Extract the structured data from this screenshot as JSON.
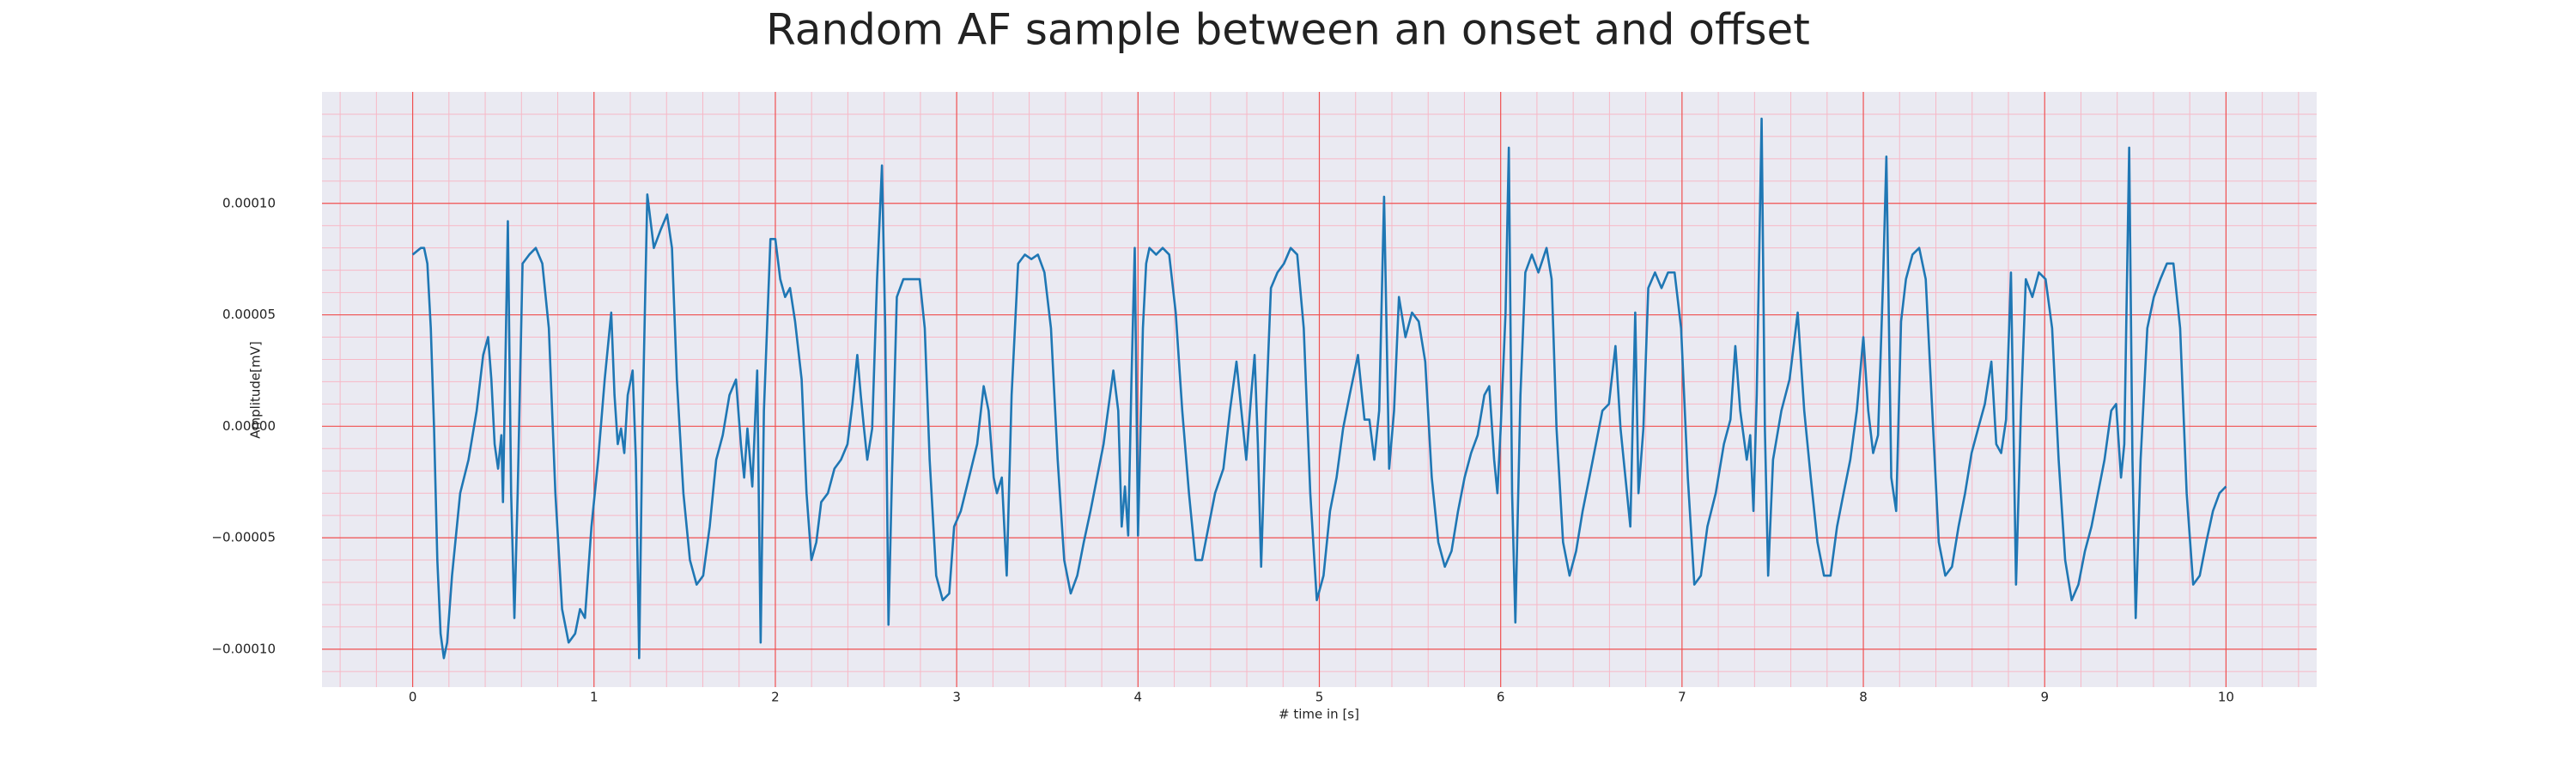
{
  "chart_data": {
    "type": "line",
    "title": "Random AF sample between an onset and offset",
    "xlabel": "# time in [s]",
    "ylabel": "Amplitude[mV]",
    "xlim": [
      -0.5,
      10.5
    ],
    "ylim": [
      -0.000117,
      0.00015
    ],
    "xticks": [
      0,
      1,
      2,
      3,
      4,
      5,
      6,
      7,
      8,
      9,
      10
    ],
    "yticks": [
      {
        "value": -0.0001,
        "label": "−0.00010"
      },
      {
        "value": -5e-05,
        "label": "−0.00005"
      },
      {
        "value": 0,
        "label": "0.00000"
      },
      {
        "value": 5e-05,
        "label": "0.00005"
      },
      {
        "value": 0.0001,
        "label": "0.00010"
      }
    ],
    "grid": true,
    "color": "#1f77b4",
    "x": [
      0,
      0.045,
      0.063,
      0.081,
      0.1,
      0.118,
      0.136,
      0.154,
      0.172,
      0.19,
      0.217,
      0.262,
      0.308,
      0.353,
      0.389,
      0.416,
      0.434,
      0.452,
      0.471,
      0.489,
      0.498,
      0.525,
      0.543,
      0.561,
      0.579,
      0.606,
      0.643,
      0.679,
      0.715,
      0.751,
      0.787,
      0.824,
      0.86,
      0.896,
      0.923,
      0.95,
      0.986,
      1.023,
      1.059,
      1.095,
      1.113,
      1.131,
      1.149,
      1.167,
      1.186,
      1.213,
      1.231,
      1.249,
      1.267,
      1.294,
      1.33,
      1.367,
      1.403,
      1.43,
      1.457,
      1.493,
      1.529,
      1.566,
      1.602,
      1.638,
      1.674,
      1.71,
      1.747,
      1.783,
      1.81,
      1.828,
      1.846,
      1.873,
      1.9,
      1.919,
      1.937,
      1.973,
      2.0,
      2.027,
      2.054,
      2.081,
      2.109,
      2.145,
      2.172,
      2.199,
      2.226,
      2.253,
      2.29,
      2.326,
      2.362,
      2.398,
      2.425,
      2.452,
      2.471,
      2.489,
      2.507,
      2.534,
      2.561,
      2.588,
      2.606,
      2.624,
      2.643,
      2.67,
      2.706,
      2.751,
      2.796,
      2.824,
      2.851,
      2.887,
      2.923,
      2.959,
      2.986,
      3.023,
      3.068,
      3.113,
      3.149,
      3.176,
      3.204,
      3.222,
      3.249,
      3.276,
      3.303,
      3.339,
      3.376,
      3.412,
      3.448,
      3.484,
      3.52,
      3.557,
      3.593,
      3.629,
      3.665,
      3.701,
      3.738,
      3.774,
      3.81,
      3.846,
      3.864,
      3.891,
      3.91,
      3.928,
      3.946,
      3.964,
      3.982,
      4.0,
      4.027,
      4.045,
      4.063,
      4.1,
      4.136,
      4.172,
      4.208,
      4.244,
      4.281,
      4.317,
      4.353,
      4.389,
      4.425,
      4.471,
      4.507,
      4.543,
      4.57,
      4.597,
      4.624,
      4.643,
      4.661,
      4.679,
      4.706,
      4.733,
      4.769,
      4.805,
      4.842,
      4.878,
      4.914,
      4.95,
      4.986,
      5.023,
      5.059,
      5.095,
      5.131,
      5.167,
      5.213,
      5.249,
      5.276,
      5.303,
      5.33,
      5.357,
      5.385,
      5.412,
      5.439,
      5.475,
      5.511,
      5.548,
      5.584,
      5.62,
      5.656,
      5.692,
      5.729,
      5.765,
      5.801,
      5.837,
      5.873,
      5.91,
      5.937,
      5.964,
      5.982,
      6.0,
      6.027,
      6.045,
      6.063,
      6.081,
      6.109,
      6.136,
      6.172,
      6.208,
      6.253,
      6.281,
      6.308,
      6.344,
      6.38,
      6.416,
      6.452,
      6.489,
      6.525,
      6.561,
      6.597,
      6.633,
      6.661,
      6.688,
      6.715,
      6.742,
      6.76,
      6.787,
      6.814,
      6.851,
      6.887,
      6.923,
      6.959,
      6.995,
      7.032,
      7.068,
      7.104,
      7.14,
      7.186,
      7.231,
      7.267,
      7.294,
      7.321,
      7.357,
      7.376,
      7.394,
      7.412,
      7.439,
      7.457,
      7.475,
      7.502,
      7.548,
      7.593,
      7.638,
      7.674,
      7.71,
      7.747,
      7.783,
      7.819,
      7.855,
      7.891,
      7.928,
      7.964,
      8.0,
      8.027,
      8.054,
      8.081,
      8.109,
      8.127,
      8.154,
      8.181,
      8.208,
      8.235,
      8.271,
      8.308,
      8.344,
      8.38,
      8.416,
      8.452,
      8.489,
      8.525,
      8.561,
      8.597,
      8.633,
      8.67,
      8.706,
      8.733,
      8.76,
      8.787,
      8.814,
      8.842,
      8.869,
      8.896,
      8.932,
      8.968,
      9.005,
      9.041,
      9.077,
      9.113,
      9.149,
      9.186,
      9.222,
      9.258,
      9.294,
      9.33,
      9.367,
      9.394,
      9.421,
      9.439,
      9.466,
      9.484,
      9.502,
      9.529,
      9.566,
      9.602,
      9.638,
      9.674,
      9.71,
      9.747,
      9.783,
      9.819,
      9.855,
      9.891,
      9.928,
      9.964,
      10.0
    ],
    "values": [
      7.7e-05,
      8e-05,
      8e-05,
      7.3e-05,
      4.4e-05,
      -1e-06,
      -6e-05,
      -9.3e-05,
      -0.000104,
      -9.7e-05,
      -6.7e-05,
      -3e-05,
      -1.5e-05,
      7e-06,
      3.2e-05,
      4e-05,
      2.1e-05,
      -8e-06,
      -1.9e-05,
      -4e-06,
      -3.4e-05,
      9.2e-05,
      -3e-05,
      -8.6e-05,
      -3e-05,
      7.3e-05,
      7.7e-05,
      8e-05,
      7.3e-05,
      4.4e-05,
      -3e-05,
      -8.2e-05,
      -9.7e-05,
      -9.3e-05,
      -8.2e-05,
      -8.6e-05,
      -4.5e-05,
      -1.5e-05,
      2.1e-05,
      5.1e-05,
      1.4e-05,
      -8e-06,
      -1e-06,
      -1.2e-05,
      1.4e-05,
      2.5e-05,
      -1.5e-05,
      -0.000104,
      -1e-06,
      0.000104,
      8e-05,
      8.8e-05,
      9.5e-05,
      8e-05,
      2.1e-05,
      -3e-05,
      -6e-05,
      -7.1e-05,
      -6.7e-05,
      -4.5e-05,
      -1.5e-05,
      -4e-06,
      1.4e-05,
      2.1e-05,
      -8e-06,
      -2.3e-05,
      -1e-06,
      -2.7e-05,
      2.5e-05,
      -9.7e-05,
      7e-06,
      8.4e-05,
      8.4e-05,
      6.6e-05,
      5.8e-05,
      6.2e-05,
      4.7e-05,
      2.1e-05,
      -3e-05,
      -6e-05,
      -5.2e-05,
      -3.4e-05,
      -3e-05,
      -1.9e-05,
      -1.5e-05,
      -8e-06,
      1e-05,
      3.2e-05,
      1.4e-05,
      -1e-06,
      -1.5e-05,
      -1e-06,
      6.6e-05,
      0.000117,
      4.4e-05,
      -8.9e-05,
      -2.3e-05,
      5.8e-05,
      6.6e-05,
      6.6e-05,
      6.6e-05,
      4.4e-05,
      -1.5e-05,
      -6.7e-05,
      -7.8e-05,
      -7.5e-05,
      -4.5e-05,
      -3.8e-05,
      -2.3e-05,
      -8e-06,
      1.8e-05,
      7e-06,
      -2.3e-05,
      -3e-05,
      -2.3e-05,
      -6.7e-05,
      1.4e-05,
      7.3e-05,
      7.7e-05,
      7.5e-05,
      7.7e-05,
      6.9e-05,
      4.4e-05,
      -1.5e-05,
      -6e-05,
      -7.5e-05,
      -6.7e-05,
      -5.2e-05,
      -3.8e-05,
      -2.3e-05,
      -8e-06,
      1.4e-05,
      2.5e-05,
      7e-06,
      -4.5e-05,
      -2.7e-05,
      -4.9e-05,
      2.1e-05,
      8e-05,
      -4.9e-05,
      4.4e-05,
      7.3e-05,
      8e-05,
      7.7e-05,
      8e-05,
      7.7e-05,
      5.1e-05,
      7e-06,
      -3e-05,
      -6e-05,
      -6e-05,
      -4.5e-05,
      -3e-05,
      -1.9e-05,
      7e-06,
      2.9e-05,
      7e-06,
      -1.5e-05,
      1.4e-05,
      3.2e-05,
      -8e-06,
      -6.3e-05,
      7e-06,
      6.2e-05,
      6.9e-05,
      7.3e-05,
      8e-05,
      7.7e-05,
      4.4e-05,
      -3e-05,
      -7.8e-05,
      -6.7e-05,
      -3.8e-05,
      -2.3e-05,
      -1e-06,
      1.4e-05,
      3.2e-05,
      3e-06,
      3e-06,
      -1.5e-05,
      7e-06,
      0.000103,
      -1.9e-05,
      7e-06,
      5.8e-05,
      4e-05,
      5.1e-05,
      4.7e-05,
      2.9e-05,
      -2.3e-05,
      -5.2e-05,
      -6.3e-05,
      -5.6e-05,
      -3.8e-05,
      -2.3e-05,
      -1.2e-05,
      -4e-06,
      1.4e-05,
      1.8e-05,
      -1.5e-05,
      -3e-05,
      -1e-06,
      5.1e-05,
      0.000125,
      -3e-05,
      -8.8e-05,
      1.4e-05,
      6.9e-05,
      7.7e-05,
      6.9e-05,
      8e-05,
      6.6e-05,
      -1e-06,
      -5.2e-05,
      -6.7e-05,
      -5.6e-05,
      -3.8e-05,
      -2.3e-05,
      -8e-06,
      7e-06,
      1e-05,
      3.6e-05,
      -1e-06,
      -2.3e-05,
      -4.5e-05,
      5.1e-05,
      -3e-05,
      -1e-06,
      6.2e-05,
      6.9e-05,
      6.2e-05,
      6.9e-05,
      6.9e-05,
      4.4e-05,
      -2.3e-05,
      -7.1e-05,
      -6.7e-05,
      -4.5e-05,
      -3e-05,
      -8e-06,
      3e-06,
      3.6e-05,
      7e-06,
      -1.5e-05,
      -4e-06,
      -3.8e-05,
      1.4e-05,
      0.000138,
      -1e-06,
      -6.7e-05,
      -1.5e-05,
      7e-06,
      2.1e-05,
      5.1e-05,
      7e-06,
      -2.3e-05,
      -5.2e-05,
      -6.7e-05,
      -6.7e-05,
      -4.5e-05,
      -3e-05,
      -1.5e-05,
      7e-06,
      4e-05,
      7e-06,
      -1.2e-05,
      -4e-06,
      6.6e-05,
      0.000121,
      -2.3e-05,
      -3.8e-05,
      4.7e-05,
      6.6e-05,
      7.7e-05,
      8e-05,
      6.6e-05,
      7e-06,
      -5.2e-05,
      -6.7e-05,
      -6.3e-05,
      -4.5e-05,
      -3e-05,
      -1.2e-05,
      -1e-06,
      1e-05,
      2.9e-05,
      -8e-06,
      -1.2e-05,
      3e-06,
      6.9e-05,
      -7.1e-05,
      7e-06,
      6.6e-05,
      5.8e-05,
      6.9e-05,
      6.6e-05,
      4.4e-05,
      -1.5e-05,
      -6e-05,
      -7.8e-05,
      -7.1e-05,
      -5.6e-05,
      -4.5e-05,
      -3e-05,
      -1.5e-05,
      7e-06,
      1e-05,
      -2.3e-05,
      -8e-06,
      0.000125,
      -1.5e-05,
      -8.6e-05,
      -1.5e-05,
      4.4e-05,
      5.8e-05,
      6.6e-05,
      7.3e-05,
      7.3e-05,
      4.4e-05,
      -3e-05,
      -7.1e-05,
      -6.7e-05,
      -5.2e-05,
      -3.8e-05,
      -3e-05,
      -2.7e-05
    ]
  }
}
